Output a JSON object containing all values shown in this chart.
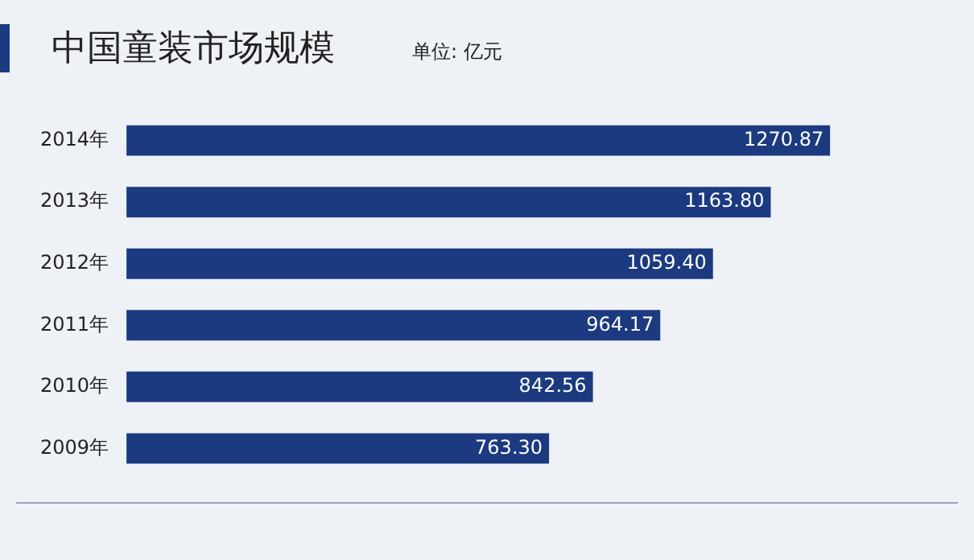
{
  "chart_data": {
    "type": "bar",
    "orientation": "horizontal",
    "title": "中国童装市场规模",
    "subtitle": "单位: 亿元",
    "categories": [
      "2014年",
      "2013年",
      "2012年",
      "2011年",
      "2010年",
      "2009年"
    ],
    "values": [
      1270.87,
      1163.8,
      1059.4,
      964.17,
      842.56,
      763.3
    ],
    "value_labels": [
      "1270.87",
      "1163.80",
      "1059.40",
      "964.17",
      "842.56",
      "763.30"
    ],
    "color": "#1b3a80",
    "tick_labels": "y"
  }
}
